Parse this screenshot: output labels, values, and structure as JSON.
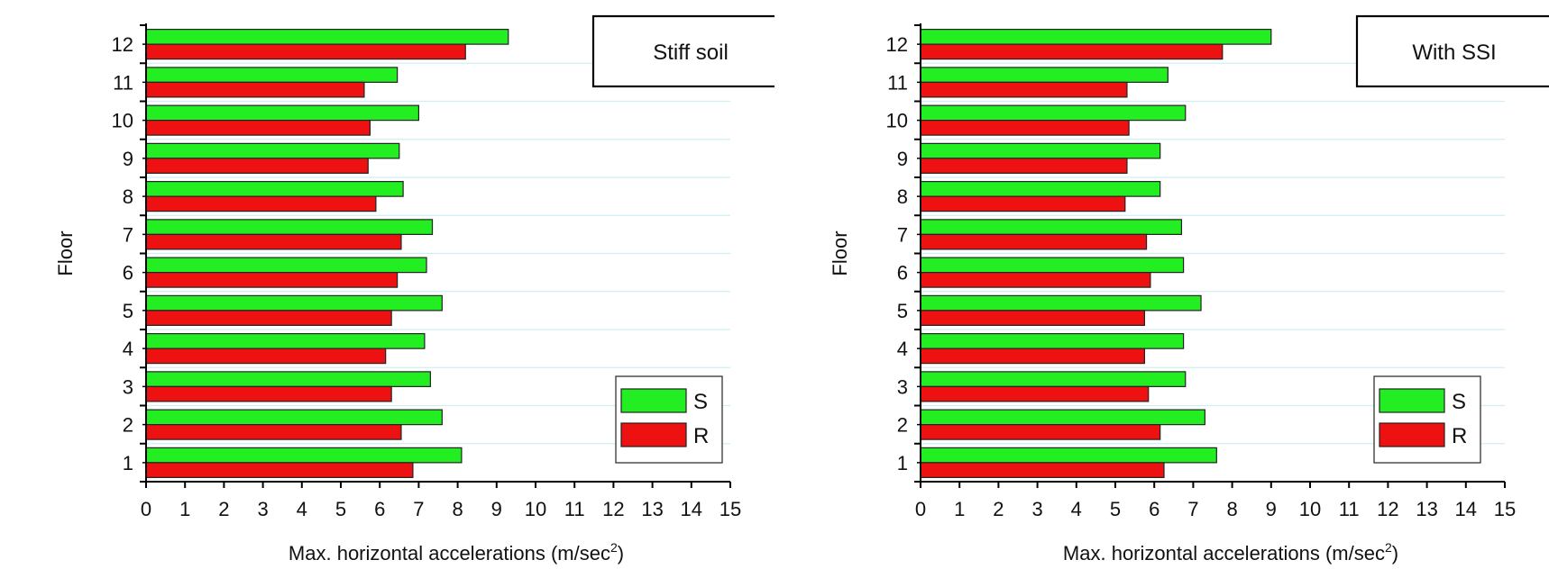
{
  "chart_data": [
    {
      "type": "bar",
      "orientation": "horizontal",
      "annotation": "Stiff soil",
      "xlabel": "Max. horizontal accelerations (m/sec",
      "xlabel_sup": "2",
      "xlabel_end": ")",
      "ylabel": "Floor",
      "xlim": [
        0,
        15
      ],
      "x_ticks": [
        "0",
        "1",
        "2",
        "3",
        "4",
        "5",
        "6",
        "7",
        "8",
        "9",
        "10",
        "11",
        "12",
        "13",
        "14",
        "15"
      ],
      "categories": [
        "1",
        "2",
        "3",
        "4",
        "5",
        "6",
        "7",
        "8",
        "9",
        "10",
        "11",
        "12"
      ],
      "series": [
        {
          "name": "S",
          "color": "#22ee22",
          "values": [
            8.1,
            7.6,
            7.3,
            7.15,
            7.6,
            7.2,
            7.35,
            6.6,
            6.5,
            7.0,
            6.45,
            9.3
          ]
        },
        {
          "name": "R",
          "color": "#ee1111",
          "values": [
            6.85,
            6.55,
            6.3,
            6.15,
            6.3,
            6.45,
            6.55,
            5.9,
            5.7,
            5.75,
            5.6,
            8.2
          ]
        }
      ],
      "grid": true,
      "legend_position": "bottom-right"
    },
    {
      "type": "bar",
      "orientation": "horizontal",
      "annotation": "With SSI",
      "xlabel": "Max. horizontal accelerations (m/sec",
      "xlabel_sup": "2",
      "xlabel_end": ")",
      "ylabel": "Floor",
      "xlim": [
        0,
        15
      ],
      "x_ticks": [
        "0",
        "1",
        "2",
        "3",
        "4",
        "5",
        "6",
        "7",
        "8",
        "9",
        "10",
        "11",
        "12",
        "13",
        "14",
        "15"
      ],
      "categories": [
        "1",
        "2",
        "3",
        "4",
        "5",
        "6",
        "7",
        "8",
        "9",
        "10",
        "11",
        "12"
      ],
      "series": [
        {
          "name": "S",
          "color": "#22ee22",
          "values": [
            7.6,
            7.3,
            6.8,
            6.75,
            7.2,
            6.75,
            6.7,
            6.15,
            6.15,
            6.8,
            6.35,
            9.0
          ]
        },
        {
          "name": "R",
          "color": "#ee1111",
          "values": [
            6.25,
            6.15,
            5.85,
            5.75,
            5.75,
            5.9,
            5.8,
            5.25,
            5.3,
            5.35,
            5.3,
            7.75
          ]
        }
      ],
      "grid": true,
      "legend_position": "bottom-right"
    }
  ]
}
